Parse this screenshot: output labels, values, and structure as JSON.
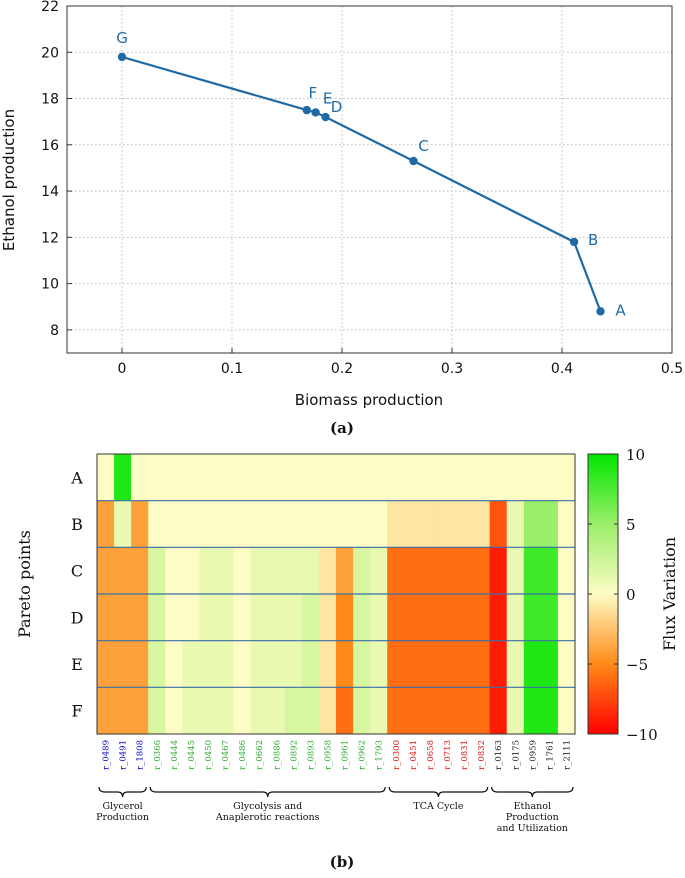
{
  "chart_data": [
    {
      "type": "line",
      "title": "",
      "xlabel": "Biomass production",
      "ylabel": "Ethanol production",
      "xlim": [
        -0.05,
        0.5
      ],
      "ylim": [
        7,
        22
      ],
      "xticks": [
        0,
        0.1,
        0.2,
        0.3,
        0.4,
        0.5
      ],
      "xtick_labels": [
        "0",
        "0.1",
        "0.2",
        "0.3",
        "0.4",
        "0.5"
      ],
      "yticks": [
        8,
        10,
        12,
        14,
        16,
        18,
        20,
        22
      ],
      "ytick_labels": [
        "8",
        "10",
        "12",
        "14",
        "16",
        "18",
        "20",
        "22"
      ],
      "color": "#1f6aa5",
      "points": [
        {
          "label": "G",
          "x": 0.0,
          "y": 19.8
        },
        {
          "label": "F",
          "x": 0.168,
          "y": 17.5
        },
        {
          "label": "E",
          "x": 0.176,
          "y": 17.4
        },
        {
          "label": "D",
          "x": 0.185,
          "y": 17.2
        },
        {
          "label": "C",
          "x": 0.265,
          "y": 15.3
        },
        {
          "label": "B",
          "x": 0.411,
          "y": 11.8
        },
        {
          "label": "A",
          "x": 0.435,
          "y": 8.8
        }
      ],
      "caption": "(a)"
    },
    {
      "type": "heatmap",
      "ylabel": "Pareto points",
      "colorbar_label": "Flux Variation",
      "colorbar_ticks": [
        10,
        5,
        0,
        -5,
        -10
      ],
      "colorbar_tick_labels": [
        "10",
        "5",
        "0",
        "−5",
        "−10"
      ],
      "rows": [
        "A",
        "B",
        "C",
        "D",
        "E",
        "F"
      ],
      "columns": [
        {
          "name": "r_0489",
          "group": 0
        },
        {
          "name": "r_0491",
          "group": 0
        },
        {
          "name": "r_1808",
          "group": 0
        },
        {
          "name": "r_0366",
          "group": 1
        },
        {
          "name": "r_0444",
          "group": 1
        },
        {
          "name": "r_0445",
          "group": 1
        },
        {
          "name": "r_0450",
          "group": 1
        },
        {
          "name": "r_0467",
          "group": 1
        },
        {
          "name": "r_0486",
          "group": 1
        },
        {
          "name": "r_0662",
          "group": 1
        },
        {
          "name": "r_0886",
          "group": 1
        },
        {
          "name": "r_0892",
          "group": 1
        },
        {
          "name": "r_0893",
          "group": 1
        },
        {
          "name": "r_0958",
          "group": 1
        },
        {
          "name": "r_0961",
          "group": 1
        },
        {
          "name": "r_0962",
          "group": 1
        },
        {
          "name": "r_1793",
          "group": 1
        },
        {
          "name": "r_0300",
          "group": 2
        },
        {
          "name": "r_0451",
          "group": 2
        },
        {
          "name": "r_0658",
          "group": 2
        },
        {
          "name": "r_0713",
          "group": 2
        },
        {
          "name": "r_0831",
          "group": 2
        },
        {
          "name": "r_0832",
          "group": 2
        },
        {
          "name": "r_0163",
          "group": 3
        },
        {
          "name": "r_0175",
          "group": 3
        },
        {
          "name": "r_0959",
          "group": 3
        },
        {
          "name": "r_1761",
          "group": 3
        },
        {
          "name": "r_2111",
          "group": 3
        }
      ],
      "values": [
        [
          0,
          9,
          0,
          0,
          0,
          0,
          0,
          0,
          0,
          0,
          0,
          0,
          0,
          0,
          0,
          0,
          0,
          0,
          0,
          0,
          0,
          0,
          0,
          0,
          0,
          0,
          0,
          0
        ],
        [
          -4,
          1,
          -4,
          0,
          0,
          0,
          0,
          0,
          0,
          0,
          0,
          0,
          0,
          0,
          0,
          0,
          0,
          -1,
          -1,
          -1,
          -1,
          -1,
          -1,
          -7,
          1,
          5,
          5,
          0
        ],
        [
          -4,
          -4,
          -4,
          2,
          0,
          0,
          1,
          1,
          0,
          1,
          1,
          1,
          1,
          -1,
          -4,
          2,
          1,
          -6,
          -6,
          -6,
          -6,
          -6,
          -6,
          -9,
          1,
          8,
          8,
          0
        ],
        [
          -4,
          -4,
          -4,
          2,
          0,
          0,
          1,
          1,
          0,
          1,
          1,
          1,
          2,
          -1,
          -5,
          2,
          1,
          -6,
          -6,
          -6,
          -6,
          -6,
          -6,
          -9,
          1,
          8,
          8,
          0
        ],
        [
          -4,
          -4,
          -4,
          2,
          0,
          1,
          1,
          1,
          0,
          1,
          1,
          1,
          2,
          -1,
          -5,
          2,
          1,
          -6,
          -6,
          -6,
          -6,
          -6,
          -6,
          -9,
          1,
          9,
          9,
          0
        ],
        [
          -4,
          -4,
          -4,
          2,
          0,
          1,
          1,
          1,
          0,
          1,
          1,
          2,
          2,
          -1,
          -6,
          2,
          1,
          -6,
          -6,
          -6,
          -6,
          -6,
          -6,
          -9,
          1,
          9,
          9,
          0
        ]
      ],
      "groups": [
        {
          "label_lines": [
            "Glycerol",
            "Production"
          ],
          "color": "#0000cc"
        },
        {
          "label_lines": [
            "Glycolysis and",
            "Anaplerotic reactions"
          ],
          "color": "#2aaa2a"
        },
        {
          "label_lines": [
            "TCA Cycle"
          ],
          "color": "#e01010"
        },
        {
          "label_lines": [
            "Ethanol",
            "Production",
            "and Utilization"
          ],
          "color": "#222222"
        }
      ],
      "caption": "(b)"
    }
  ]
}
